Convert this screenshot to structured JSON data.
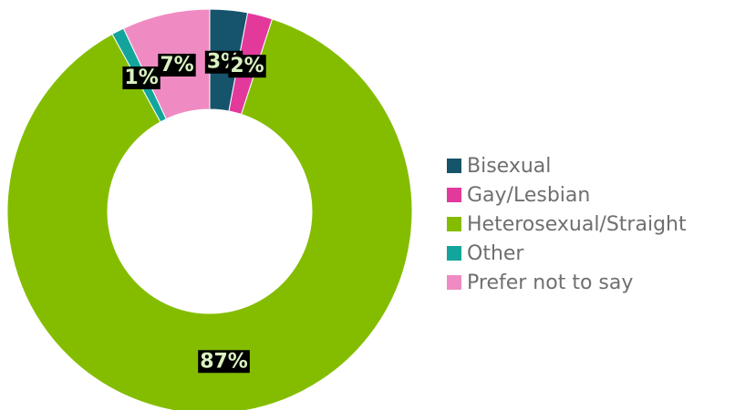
{
  "chart_data": {
    "type": "donut",
    "categories": [
      "Bisexual",
      "Gay/Lesbian",
      "Heterosexual/Straight",
      "Other",
      "Prefer not to say"
    ],
    "values": [
      3,
      2,
      87,
      1,
      7
    ],
    "value_labels": [
      "3%",
      "2%",
      "87%",
      "1%",
      "7%"
    ],
    "colors": [
      "#16546c",
      "#e2399b",
      "#84bd00",
      "#13a59b",
      "#ef8bc2"
    ],
    "legend": "right"
  }
}
